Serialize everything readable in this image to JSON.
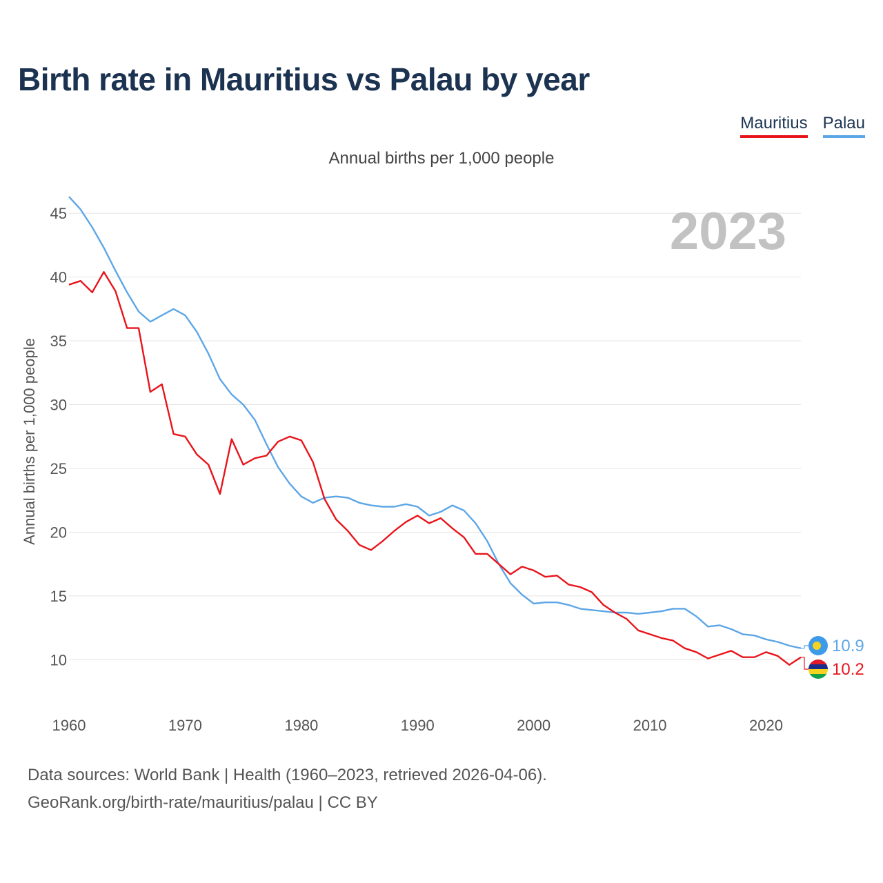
{
  "title": "Birth rate in Mauritius vs Palau by year",
  "subtitle": "Annual births per 1,000 people",
  "legend": [
    {
      "name": "Mauritius",
      "color": "#e8141b"
    },
    {
      "name": "Palau",
      "color": "#5da6e6"
    }
  ],
  "footer": {
    "line1": "Data sources: World Bank | Health (1960–2023, retrieved 2026-04-06).",
    "line2": "GeoRank.org/birth-rate/mauritius/palau | CC BY"
  },
  "chart_data": {
    "type": "line",
    "title": "Birth rate in Mauritius vs Palau by year",
    "ylabel": "Annual births per 1,000 people",
    "xlabel": "",
    "year_label": "2023",
    "xlim": [
      1960,
      2023
    ],
    "ylim": [
      7.1,
      48.2
    ],
    "x_ticks": [
      1960,
      1970,
      1980,
      1990,
      2000,
      2010,
      2020
    ],
    "y_ticks": [
      10,
      15,
      20,
      25,
      30,
      35,
      40,
      45
    ],
    "x": [
      1960,
      1961,
      1962,
      1963,
      1964,
      1965,
      1966,
      1967,
      1968,
      1969,
      1970,
      1971,
      1972,
      1973,
      1974,
      1975,
      1976,
      1977,
      1978,
      1979,
      1980,
      1981,
      1982,
      1983,
      1984,
      1985,
      1986,
      1987,
      1988,
      1989,
      1990,
      1991,
      1992,
      1993,
      1994,
      1995,
      1996,
      1997,
      1998,
      1999,
      2000,
      2001,
      2002,
      2003,
      2004,
      2005,
      2006,
      2007,
      2008,
      2009,
      2010,
      2011,
      2012,
      2013,
      2014,
      2015,
      2016,
      2017,
      2018,
      2019,
      2020,
      2021,
      2022,
      2023
    ],
    "series": [
      {
        "name": "Mauritius",
        "color": "#e8141b",
        "end_label": "10.2",
        "values": [
          39.4,
          39.7,
          38.8,
          40.4,
          38.9,
          36.0,
          36.0,
          31.0,
          31.6,
          27.7,
          27.5,
          26.1,
          25.3,
          23.0,
          27.3,
          25.3,
          25.8,
          26.0,
          27.1,
          27.5,
          27.2,
          25.5,
          22.6,
          21.0,
          20.1,
          19.0,
          18.6,
          19.3,
          20.1,
          20.8,
          21.3,
          20.7,
          21.1,
          20.3,
          19.6,
          18.3,
          18.3,
          17.5,
          16.7,
          17.3,
          17.0,
          16.5,
          16.6,
          15.9,
          15.7,
          15.3,
          14.3,
          13.7,
          13.2,
          12.3,
          12.0,
          11.7,
          11.5,
          10.9,
          10.6,
          10.1,
          10.4,
          10.7,
          10.2,
          10.2,
          10.6,
          10.3,
          9.6,
          10.2
        ]
      },
      {
        "name": "Palau",
        "color": "#5da6e6",
        "end_label": "10.9",
        "values": [
          46.3,
          45.3,
          43.9,
          42.3,
          40.5,
          38.8,
          37.3,
          36.5,
          37.0,
          37.5,
          37.0,
          35.7,
          34.0,
          32.0,
          30.8,
          30.0,
          28.8,
          26.9,
          25.1,
          23.8,
          22.8,
          22.3,
          22.7,
          22.8,
          22.7,
          22.3,
          22.1,
          22.0,
          22.0,
          22.2,
          22.0,
          21.3,
          21.6,
          22.1,
          21.7,
          20.7,
          19.3,
          17.5,
          16.0,
          15.1,
          14.4,
          14.5,
          14.5,
          14.3,
          14.0,
          13.9,
          13.8,
          13.7,
          13.7,
          13.6,
          13.7,
          13.8,
          14.0,
          14.0,
          13.4,
          12.6,
          12.7,
          12.4,
          12.0,
          11.9,
          11.6,
          11.4,
          11.1,
          10.9
        ]
      }
    ]
  }
}
